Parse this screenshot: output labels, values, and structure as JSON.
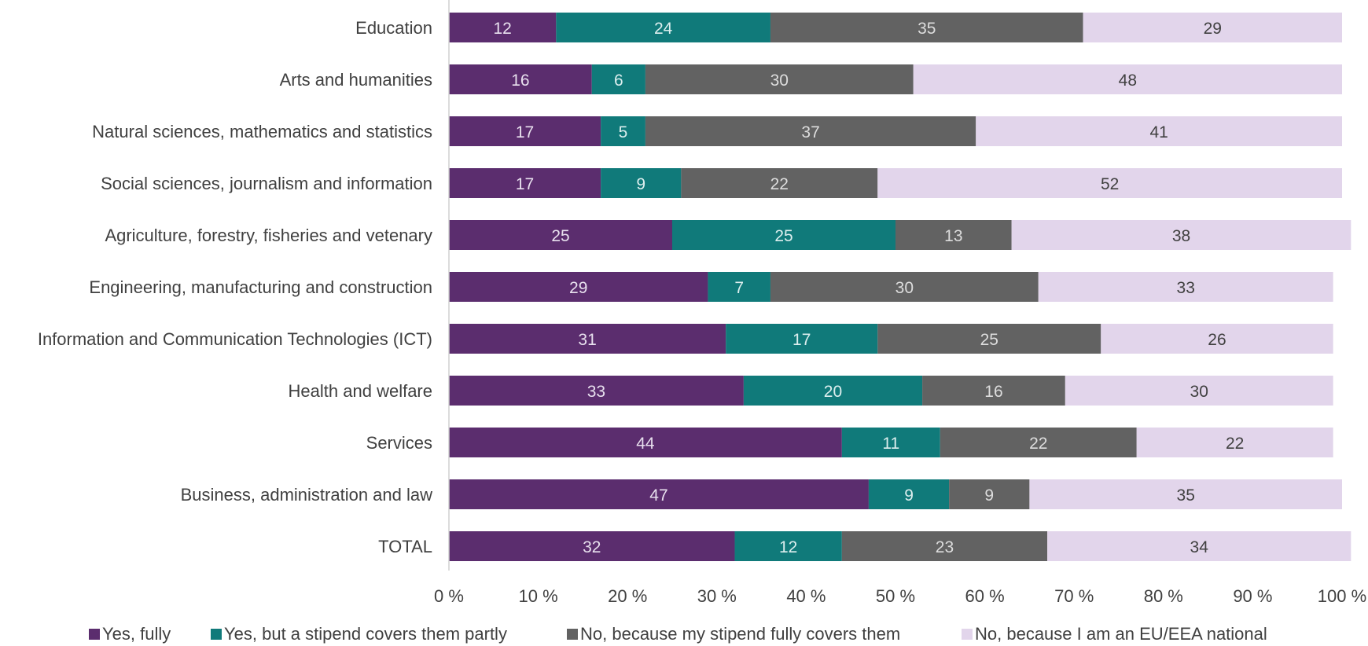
{
  "chart_data": {
    "type": "bar",
    "orientation": "horizontal",
    "stacked": true,
    "categories": [
      "Education",
      "Arts and humanities",
      "Natural sciences, mathematics and statistics",
      "Social sciences, journalism and information",
      "Agriculture, forestry, fisheries and vetenary",
      "Engineering, manufacturing and construction",
      "Information and Communication Technologies (ICT)",
      "Health and welfare",
      "Services",
      "Business, administration and law",
      "TOTAL"
    ],
    "series": [
      {
        "name": "Yes, fully",
        "color": "#5b2d6e",
        "label_color": "#e8e0ee",
        "values": [
          12,
          16,
          17,
          17,
          25,
          29,
          31,
          33,
          44,
          47,
          32
        ]
      },
      {
        "name": "Yes, but a stipend covers them partly",
        "color": "#107a7a",
        "label_color": "#dceeee",
        "values": [
          24,
          6,
          5,
          9,
          25,
          7,
          17,
          20,
          11,
          9,
          12
        ]
      },
      {
        "name": "No, because my stipend fully covers them",
        "color": "#626262",
        "label_color": "#dddddd",
        "values": [
          35,
          30,
          37,
          22,
          13,
          30,
          25,
          16,
          22,
          9,
          23
        ]
      },
      {
        "name": "No, because I am an EU/EEA national",
        "color": "#e2d5eb",
        "label_color": "#404040",
        "values": [
          29,
          48,
          41,
          52,
          38,
          33,
          26,
          30,
          22,
          35,
          34
        ]
      }
    ],
    "x_ticks": [
      "0 %",
      "10 %",
      "20 %",
      "30 %",
      "40 %",
      "50 %",
      "60 %",
      "70 %",
      "80 %",
      "90 %",
      "100 %"
    ],
    "xlim": [
      0,
      100
    ],
    "grid": false,
    "legend_position": "bottom"
  }
}
